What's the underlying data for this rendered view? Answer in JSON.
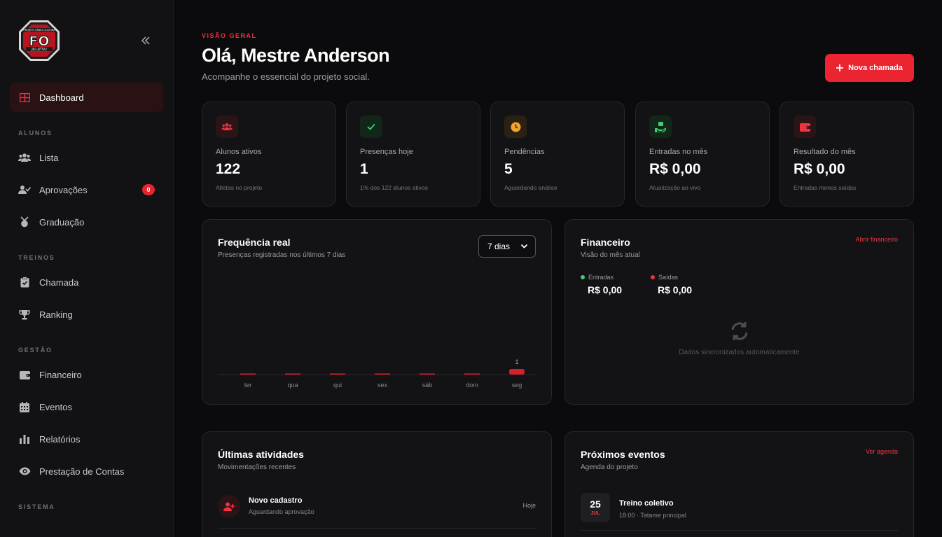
{
  "sidebar": {
    "dashboard_label": "Dashboard",
    "sections": {
      "alunos": "ALUNOS",
      "treinos": "TREINOS",
      "gestao": "GESTÃO",
      "sistema": "SISTEMA"
    },
    "items": {
      "lista": "Lista",
      "aprovacoes": "Aprovações",
      "aprovacoes_badge": "0",
      "graduacao": "Graduação",
      "chamada": "Chamada",
      "ranking": "Ranking",
      "financeiro": "Financeiro",
      "eventos": "Eventos",
      "relatorios": "Relatórios",
      "prestacao": "Prestação de Contas"
    },
    "logo": {
      "top_text": "PROJETO FÁBIO OLIVEIRA",
      "mark": "FO",
      "bottom_text": "JIU-JITSU"
    }
  },
  "header": {
    "eyebrow": "VISÃO GERAL",
    "title": "Olá, Mestre Anderson",
    "subtitle": "Acompanhe o essencial do projeto social.",
    "primary_button": "Nova chamada"
  },
  "stats": [
    {
      "label": "Alunos ativos",
      "value": "122",
      "hint": "Atletas no projeto",
      "icon": "users-icon",
      "color": "#ef3340"
    },
    {
      "label": "Presenças hoje",
      "value": "1",
      "hint": "1% dos 122 alunos ativos",
      "icon": "check-icon",
      "color": "#3ecf6e"
    },
    {
      "label": "Pendências",
      "value": "5",
      "hint": "Aguardando análise",
      "icon": "clock-icon",
      "color": "#f0a531"
    },
    {
      "label": "Entradas no mês",
      "value": "R$ 0,00",
      "hint": "Atualização ao vivo",
      "icon": "hand-money-icon",
      "color": "#3ecf6e"
    },
    {
      "label": "Resultado do mês",
      "value": "R$ 0,00",
      "hint": "Entradas menos saídas",
      "icon": "wallet-icon",
      "color": "#ef3340"
    }
  ],
  "frequency": {
    "title": "Frequência real",
    "subtitle": "Presenças registradas nos últimos 7 dias",
    "select_value": "7 dias"
  },
  "chart_data": {
    "type": "bar",
    "categories": [
      "ter",
      "qua",
      "qui",
      "sex",
      "sáb",
      "dom",
      "seg"
    ],
    "values": [
      0,
      0,
      0,
      0,
      0,
      0,
      1
    ],
    "title": "",
    "xlabel": "",
    "ylabel": "",
    "color": "#d81f2c",
    "grid": false
  },
  "finance": {
    "title": "Financeiro",
    "subtitle": "Visão do mês atual",
    "link": "Abrir financeiro",
    "in_label": "Entradas",
    "in_value": "R$ 0,00",
    "out_label": "Saídas",
    "out_value": "R$ 0,00",
    "sync_text": "Dados sincronizados automaticamente"
  },
  "activities": {
    "title": "Últimas atividades",
    "subtitle": "Movimentações recentes",
    "items": [
      {
        "title": "Novo cadastro",
        "sub": "Aguardando aprovação",
        "time": "Hoje"
      }
    ]
  },
  "events": {
    "title": "Próximos eventos",
    "subtitle": "Agenda do projeto",
    "link": "Ver agenda",
    "items": [
      {
        "day": "25",
        "month": "JUL",
        "title": "Treino coletivo",
        "sub": "18:00 · Tatame principal"
      }
    ]
  }
}
